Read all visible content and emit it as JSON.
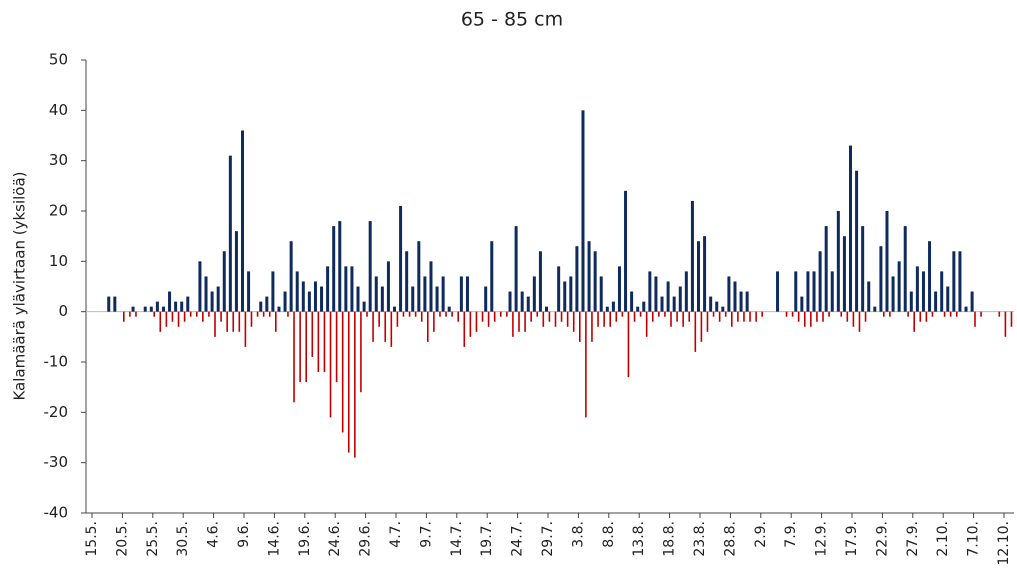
{
  "chart_data": {
    "type": "bar",
    "title": "65 - 85 cm",
    "y_label": "Kalamäärä ylävirtaan (yksilöä)",
    "categories": [
      "15.5.",
      null,
      null,
      null,
      null,
      "20.5.",
      null,
      null,
      null,
      null,
      "25.5.",
      null,
      null,
      null,
      null,
      "30.5.",
      null,
      null,
      null,
      null,
      "4.6.",
      null,
      null,
      null,
      null,
      "9.6.",
      null,
      null,
      null,
      null,
      "14.6.",
      null,
      null,
      null,
      null,
      "19.6.",
      null,
      null,
      null,
      null,
      "24.6.",
      null,
      null,
      null,
      null,
      "29.6.",
      null,
      null,
      null,
      null,
      "4.7.",
      null,
      null,
      null,
      null,
      "9.7.",
      null,
      null,
      null,
      null,
      "14.7.",
      null,
      null,
      null,
      null,
      "19.7.",
      null,
      null,
      null,
      null,
      "24.7.",
      null,
      null,
      null,
      null,
      "29.7.",
      null,
      null,
      null,
      null,
      "3.8.",
      null,
      null,
      null,
      null,
      "8.8.",
      null,
      null,
      null,
      null,
      "13.8.",
      null,
      null,
      null,
      null,
      "18.8.",
      null,
      null,
      null,
      null,
      "23.8.",
      null,
      null,
      null,
      null,
      "28.8.",
      null,
      null,
      null,
      null,
      "2.9.",
      null,
      null,
      null,
      null,
      "7.9.",
      null,
      null,
      null,
      null,
      "12.9.",
      null,
      null,
      null,
      null,
      "17.9.",
      null,
      null,
      null,
      null,
      "22.9.",
      null,
      null,
      null,
      null,
      "27.9.",
      null,
      null,
      null,
      null,
      "2.10.",
      null,
      null,
      null,
      null,
      "7.10.",
      null,
      null,
      null,
      null,
      "12.10.",
      null
    ],
    "series": [
      {
        "color": "#0f2b5e",
        "values": [
          0,
          0,
          0,
          3,
          3,
          0,
          0,
          1,
          0,
          1,
          1,
          2,
          1,
          4,
          2,
          2,
          3,
          0,
          10,
          7,
          4,
          5,
          12,
          31,
          16,
          36,
          8,
          0,
          2,
          3,
          8,
          1,
          4,
          14,
          8,
          6,
          4,
          6,
          5,
          9,
          17,
          18,
          9,
          9,
          5,
          2,
          18,
          7,
          5,
          10,
          1,
          21,
          12,
          5,
          14,
          7,
          10,
          5,
          7,
          1,
          0,
          7,
          7,
          0,
          0,
          5,
          14,
          0,
          0,
          4,
          17,
          4,
          3,
          7,
          12,
          1,
          0,
          9,
          6,
          7,
          13,
          40,
          14,
          12,
          7,
          1,
          2,
          9,
          24,
          4,
          1,
          2,
          8,
          7,
          3,
          6,
          3,
          5,
          8,
          22,
          14,
          15,
          3,
          2,
          1,
          7,
          6,
          4,
          4,
          0,
          0,
          0,
          0,
          8,
          0,
          0,
          8,
          3,
          8,
          8,
          12,
          17,
          8,
          20,
          15,
          33,
          28,
          17,
          6,
          1,
          13,
          20,
          7,
          10,
          17,
          4,
          9,
          8,
          14,
          4,
          8,
          5,
          12,
          12,
          1,
          4,
          0,
          0,
          0,
          0,
          0,
          0
        ]
      },
      {
        "color": "#c00000",
        "values": [
          0,
          0,
          0,
          0,
          0,
          -2,
          -1,
          -1,
          0,
          0,
          -1,
          -4,
          -3,
          -2,
          -3,
          -2,
          -1,
          -1,
          -2,
          -1,
          -5,
          -2,
          -4,
          -4,
          -4,
          -7,
          -3,
          -1,
          -1,
          -1,
          -4,
          0,
          -1,
          -18,
          -14,
          -14,
          -9,
          -12,
          -12,
          -21,
          -14,
          -24,
          -28,
          -29,
          -16,
          -1,
          -6,
          -3,
          -6,
          -7,
          -3,
          -1,
          -1,
          -1,
          -2,
          -6,
          -4,
          -1,
          -1,
          -1,
          -2,
          -7,
          -5,
          -4,
          -2,
          -3,
          -2,
          -1,
          -1,
          -5,
          -4,
          -4,
          -2,
          -1,
          -3,
          -2,
          -3,
          -2,
          -3,
          -4,
          -6,
          -21,
          -6,
          -3,
          -3,
          -3,
          -2,
          -1,
          -13,
          -2,
          -1,
          -5,
          -2,
          -1,
          -1,
          -3,
          -2,
          -3,
          -2,
          -8,
          -6,
          -4,
          -1,
          -2,
          -1,
          -3,
          -2,
          -2,
          -2,
          -2,
          -1,
          0,
          0,
          0,
          -1,
          -1,
          -2,
          -3,
          -3,
          -2,
          -2,
          -1,
          0,
          -1,
          -2,
          -3,
          -4,
          -2,
          0,
          0,
          -1,
          -1,
          0,
          0,
          -1,
          -4,
          -2,
          -2,
          -1,
          0,
          -1,
          -1,
          -1,
          0,
          0,
          -3,
          -1,
          0,
          0,
          -1,
          -5,
          -3
        ]
      }
    ],
    "ylim": [
      -40,
      50
    ],
    "yticks": [
      -40,
      -30,
      -20,
      -10,
      0,
      10,
      20,
      30,
      40,
      50
    ]
  }
}
